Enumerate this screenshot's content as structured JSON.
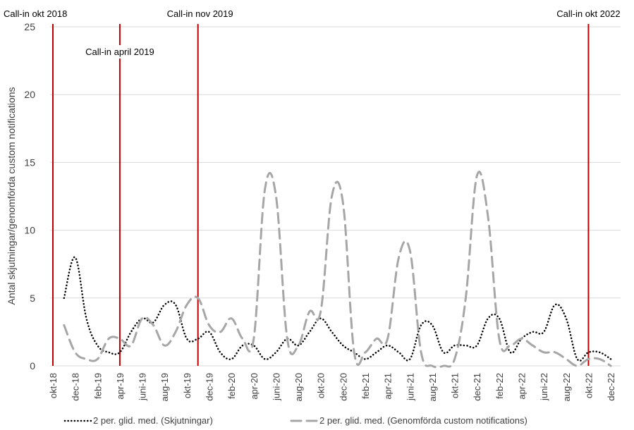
{
  "chart_data": {
    "type": "line",
    "ylabel": "Antal skjutningar/genomförda custom notifications",
    "ylim": [
      0,
      25
    ],
    "yticks": [
      0,
      5,
      10,
      15,
      20,
      25
    ],
    "grid": "horizontal",
    "legend_position": "bottom",
    "categories": [
      "okt-18",
      "nov-18",
      "dec-18",
      "jan-19",
      "feb-19",
      "mar-19",
      "apr-19",
      "maj-19",
      "juni-19",
      "juli-19",
      "aug-19",
      "sep-19",
      "okt-19",
      "nov-19",
      "dec-19",
      "jan-20",
      "feb-20",
      "mar-20",
      "apr-20",
      "maj-20",
      "juni-20",
      "juli-20",
      "aug-20",
      "sep-20",
      "okt-20",
      "nov-20",
      "dec-20",
      "jan-21",
      "feb-21",
      "mar-21",
      "apr-21",
      "maj-21",
      "juni-21",
      "juli-21",
      "aug-21",
      "sep-21",
      "okt-21",
      "nov-21",
      "dec-21",
      "jan-22",
      "feb-22",
      "mar-22",
      "apr-22",
      "maj-22",
      "juni-22",
      "juli-22",
      "aug-22",
      "sep-22",
      "okt-22",
      "nov-22",
      "dec-22"
    ],
    "tick_labels": [
      "okt-18",
      "dec-18",
      "feb-19",
      "apr-19",
      "juni-19",
      "aug-19",
      "okt-19",
      "dec-19",
      "feb-20",
      "apr-20",
      "juni-20",
      "aug-20",
      "okt-20",
      "dec-20",
      "feb-21",
      "apr-21",
      "juni-21",
      "aug-21",
      "okt-21",
      "dec-21",
      "feb-22",
      "apr-22",
      "juni-22",
      "aug-22",
      "okt-22",
      "dec-22"
    ],
    "series": [
      {
        "name": "2 per. glid. med. (Skjutningar)",
        "style": "dotted",
        "color": "#000000",
        "values": [
          null,
          5,
          8,
          3.5,
          1.5,
          1,
          1,
          2.5,
          3.5,
          3.2,
          4.5,
          4.5,
          2,
          2,
          2.5,
          1,
          0.5,
          1.5,
          1.5,
          0.5,
          1,
          2,
          1.5,
          2.5,
          3.5,
          2.5,
          1.5,
          1,
          0.5,
          1,
          1.5,
          1,
          0.5,
          3,
          3,
          1,
          1.5,
          1.5,
          1.5,
          3.5,
          3.5,
          1,
          2,
          2.5,
          2.5,
          4.5,
          3.5,
          0.5,
          1,
          1,
          0.5
        ]
      },
      {
        "name": "2 per. glid. med. (Genomförda custom notifications)",
        "style": "dashed",
        "color": "#A6A6A6",
        "values": [
          null,
          3,
          1,
          0.5,
          0.5,
          2,
          2,
          1.5,
          3.5,
          3,
          1.5,
          2.5,
          4.5,
          5,
          3,
          2.5,
          3.5,
          2,
          2,
          13,
          12.5,
          2,
          1.5,
          4,
          4,
          12.5,
          12,
          1,
          1,
          2,
          2,
          8,
          8.5,
          1,
          0,
          0,
          0.5,
          5,
          14,
          11,
          2,
          1.5,
          2,
          1.5,
          1,
          1,
          0.5,
          0,
          0.5,
          0.5,
          0
        ]
      }
    ],
    "annotations": [
      {
        "label": "Call-in okt 2018",
        "category": "okt-18",
        "label_row": "top",
        "label_anchor": "middle"
      },
      {
        "label": "Call-in april 2019",
        "category": "apr-19",
        "label_row": "below-top",
        "label_anchor": "middle"
      },
      {
        "label": "Call-in nov 2019",
        "category": "nov-19",
        "label_row": "top",
        "label_anchor": "start"
      },
      {
        "label": "Call-in okt 2022",
        "category": "okt-22",
        "label_row": "top",
        "label_anchor": "middle"
      }
    ],
    "colors": {
      "callout_line": "#C00000",
      "grid": "#D9D9D9"
    }
  }
}
